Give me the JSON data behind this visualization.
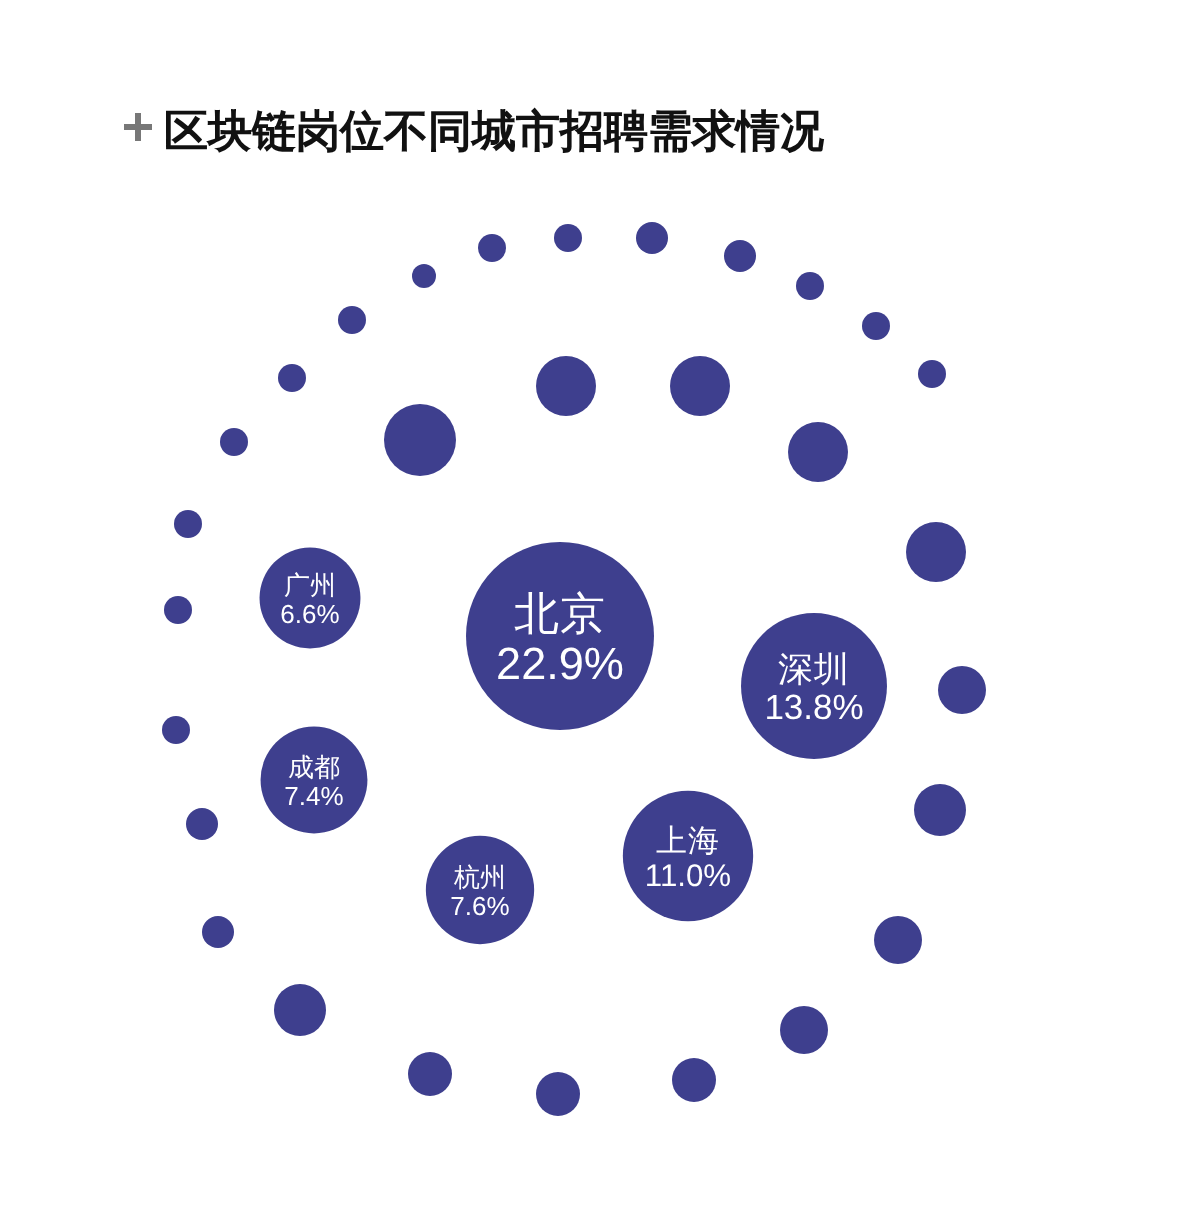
{
  "chart_data": {
    "type": "other",
    "title": "区块链岗位不同城市招聘需求情况",
    "categories": [
      "北京",
      "深圳",
      "上海",
      "杭州",
      "成都",
      "广州"
    ],
    "values": [
      22.9,
      13.8,
      11.0,
      7.6,
      7.4,
      6.6
    ],
    "value_labels": [
      "22.9%",
      "13.8%",
      "11.0%",
      "7.6%",
      "7.4%",
      "6.6%"
    ],
    "color": "#3e3f8e"
  }
}
